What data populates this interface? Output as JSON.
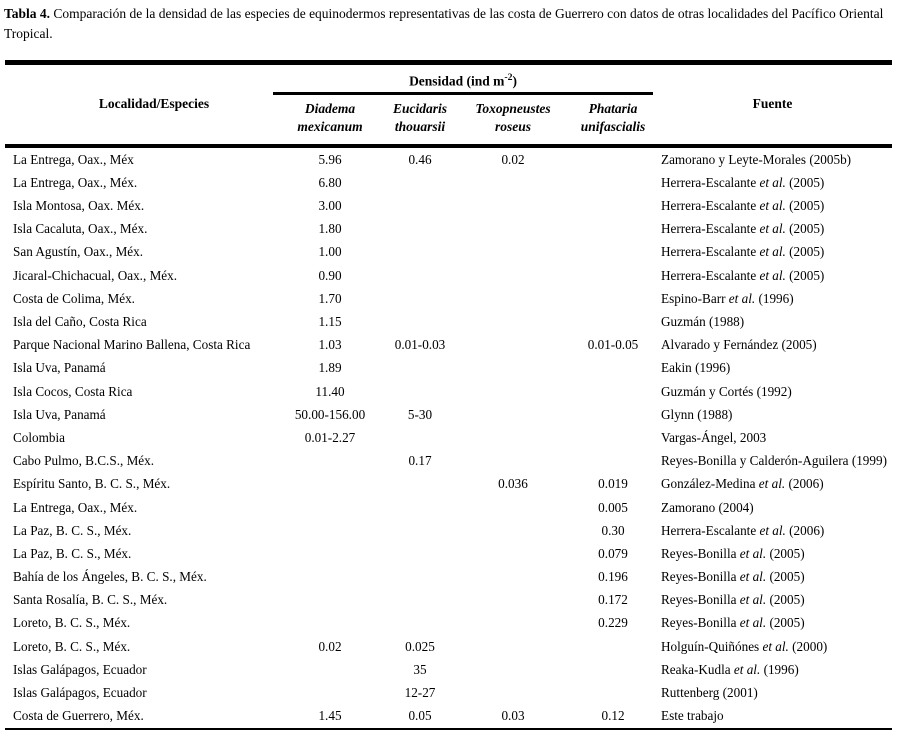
{
  "title": {
    "bold": "Tabla 4.",
    "rest": " Comparación de la densidad de las especies de equinodermos representativas de las costa de Guerrero con datos de otras localidades del Pacífico Oriental Tropical."
  },
  "table": {
    "headers": {
      "localidad": "Localidad/Especies",
      "densidad": {
        "pre": "Densidad (ind m",
        "sup": "-2",
        "post": ")"
      },
      "fuente": "Fuente",
      "species": [
        {
          "line1": "Diadema",
          "line2": "mexicanum"
        },
        {
          "line1": "Eucidaris",
          "line2": "thouarsii"
        },
        {
          "line1": "Toxopneustes",
          "line2": "roseus"
        },
        {
          "line1": "Phataria",
          "line2": "unifascialis"
        }
      ]
    },
    "rows": [
      {
        "localidad": "La Entrega, Oax., Méx",
        "diadema": "5.96",
        "eucidaris": "0.46",
        "toxopneustes": "0.02",
        "phataria": "",
        "fuente": "Zamorano y Leyte-Morales (2005b)"
      },
      {
        "localidad": "La Entrega, Oax., Méx.",
        "diadema": "6.80",
        "eucidaris": "",
        "toxopneustes": "",
        "phataria": "",
        "fuente": "Herrera-Escalante *et al.* (2005)"
      },
      {
        "localidad": "Isla Montosa, Oax. Méx.",
        "diadema": "3.00",
        "eucidaris": "",
        "toxopneustes": "",
        "phataria": "",
        "fuente": "Herrera-Escalante *et al.* (2005)"
      },
      {
        "localidad": "Isla Cacaluta, Oax., Méx.",
        "diadema": "1.80",
        "eucidaris": "",
        "toxopneustes": "",
        "phataria": "",
        "fuente": "Herrera-Escalante *et al.* (2005)"
      },
      {
        "localidad": "San Agustín, Oax., Méx.",
        "diadema": "1.00",
        "eucidaris": "",
        "toxopneustes": "",
        "phataria": "",
        "fuente": "Herrera-Escalante *et al.* (2005)"
      },
      {
        "localidad": "Jicaral-Chichacual, Oax., Méx.",
        "diadema": "0.90",
        "eucidaris": "",
        "toxopneustes": "",
        "phataria": "",
        "fuente": "Herrera-Escalante *et al.* (2005)"
      },
      {
        "localidad": "Costa de Colima, Méx.",
        "diadema": "1.70",
        "eucidaris": "",
        "toxopneustes": "",
        "phataria": "",
        "fuente": "Espino-Barr *et al.* (1996)"
      },
      {
        "localidad": "Isla del Caño, Costa Rica",
        "diadema": "1.15",
        "eucidaris": "",
        "toxopneustes": "",
        "phataria": "",
        "fuente": "Guzmán (1988)"
      },
      {
        "localidad": "Parque Nacional Marino Ballena, Costa Rica",
        "diadema": "1.03",
        "eucidaris": "0.01-0.03",
        "toxopneustes": "",
        "phataria": "0.01-0.05",
        "fuente": "Alvarado y Fernández (2005)"
      },
      {
        "localidad": "Isla Uva, Panamá",
        "diadema": "1.89",
        "eucidaris": "",
        "toxopneustes": "",
        "phataria": "",
        "fuente": "Eakin (1996)"
      },
      {
        "localidad": "Isla Cocos, Costa Rica",
        "diadema": "11.40",
        "eucidaris": "",
        "toxopneustes": "",
        "phataria": "",
        "fuente": "Guzmán y Cortés (1992)"
      },
      {
        "localidad": "Isla Uva, Panamá",
        "diadema": "50.00-156.00",
        "eucidaris": "5-30",
        "toxopneustes": "",
        "phataria": "",
        "fuente": "Glynn (1988)"
      },
      {
        "localidad": "Colombia",
        "diadema": "0.01-2.27",
        "eucidaris": "",
        "toxopneustes": "",
        "phataria": "",
        "fuente": "Vargas-Ángel, 2003"
      },
      {
        "localidad": "Cabo Pulmo, B.C.S., Méx.",
        "diadema": "",
        "eucidaris": "0.17",
        "toxopneustes": "",
        "phataria": "",
        "fuente": "Reyes-Bonilla y Calderón-Aguilera (1999)"
      },
      {
        "localidad": "Espíritu Santo, B. C. S., Méx.",
        "diadema": "",
        "eucidaris": "",
        "toxopneustes": "0.036",
        "phataria": "0.019",
        "fuente": "González-Medina *et al.* (2006)"
      },
      {
        "localidad": "La Entrega, Oax., Méx.",
        "diadema": "",
        "eucidaris": "",
        "toxopneustes": "",
        "phataria": "0.005",
        "fuente": "Zamorano (2004)"
      },
      {
        "localidad": "La Paz, B. C. S., Méx.",
        "diadema": "",
        "eucidaris": "",
        "toxopneustes": "",
        "phataria": "0.30",
        "fuente": "Herrera-Escalante *et al.* (2006)"
      },
      {
        "localidad": "La Paz, B. C. S., Méx.",
        "diadema": "",
        "eucidaris": "",
        "toxopneustes": "",
        "phataria": "0.079",
        "fuente": "Reyes-Bonilla *et al.* (2005)"
      },
      {
        "localidad": "Bahía de los Ángeles, B. C. S., Méx.",
        "diadema": "",
        "eucidaris": "",
        "toxopneustes": "",
        "phataria": "0.196",
        "fuente": "Reyes-Bonilla *et al.* (2005)"
      },
      {
        "localidad": "Santa Rosalía, B. C. S., Méx.",
        "diadema": "",
        "eucidaris": "",
        "toxopneustes": "",
        "phataria": "0.172",
        "fuente": "Reyes-Bonilla *et al.* (2005)"
      },
      {
        "localidad": "Loreto, B. C. S., Méx.",
        "diadema": "",
        "eucidaris": "",
        "toxopneustes": "",
        "phataria": "0.229",
        "fuente": "Reyes-Bonilla *et al.* (2005)"
      },
      {
        "localidad": "Loreto, B. C. S., Méx.",
        "diadema": "0.02",
        "eucidaris": "0.025",
        "toxopneustes": "",
        "phataria": "",
        "fuente": "Holguín-Quiñónes *et al.* (2000)"
      },
      {
        "localidad": "Islas Galápagos, Ecuador",
        "diadema": "",
        "eucidaris": "35",
        "toxopneustes": "",
        "phataria": "",
        "fuente": "Reaka-Kudla *et al.* (1996)"
      },
      {
        "localidad": "Islas Galápagos, Ecuador",
        "diadema": "",
        "eucidaris": "12-27",
        "toxopneustes": "",
        "phataria": "",
        "fuente": "Ruttenberg (2001)"
      },
      {
        "localidad": "Costa de Guerrero, Méx.",
        "diadema": "1.45",
        "eucidaris": "0.05",
        "toxopneustes": "0.03",
        "phataria": "0.12",
        "fuente": "Este trabajo"
      }
    ]
  }
}
